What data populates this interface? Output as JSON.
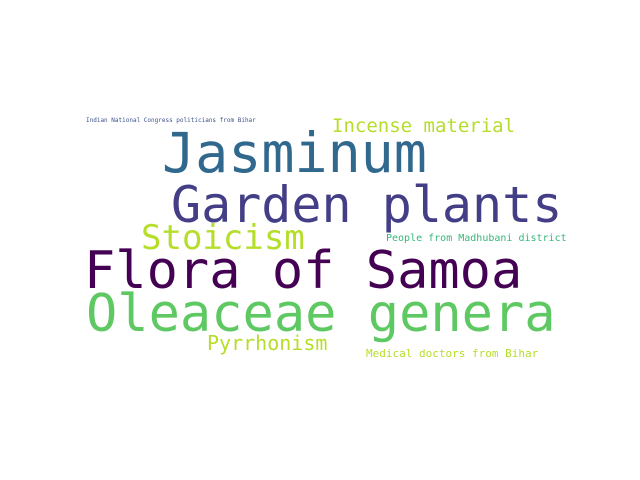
{
  "word_cloud": {
    "words": [
      {
        "text": "Jasminum",
        "color": "#31688e"
      },
      {
        "text": "Garden plants",
        "color": "#433e85"
      },
      {
        "text": "Flora of Samoa",
        "color": "#440154"
      },
      {
        "text": "Oleaceae genera",
        "color": "#5ec962"
      },
      {
        "text": "Stoicism",
        "color": "#b5de2b"
      },
      {
        "text": "Incense material",
        "color": "#b5de2b"
      },
      {
        "text": "Pyrrhonism",
        "color": "#b5de2b"
      },
      {
        "text": "Medical doctors from Bihar",
        "color": "#b5de2b"
      },
      {
        "text": "People from Madhubani district",
        "color": "#35b779"
      },
      {
        "text": "Indian National Congress politicians from Bihar",
        "color": "#3b528b"
      }
    ]
  }
}
